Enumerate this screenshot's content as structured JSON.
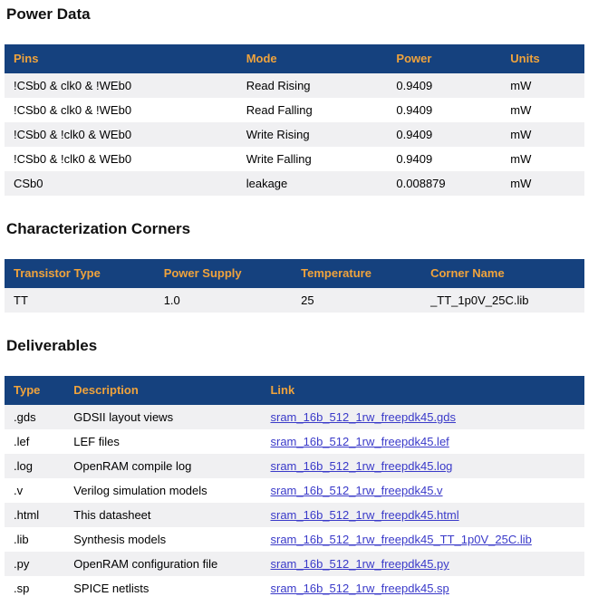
{
  "colors": {
    "table_header_bg": "#15417E",
    "table_header_text": "#F0A33C",
    "row_stripe": "#F0F0F2",
    "link": "#3A3AC9"
  },
  "sections": {
    "power": {
      "title": "Power Data",
      "headers": [
        "Pins",
        "Mode",
        "Power",
        "Units"
      ],
      "rows": [
        [
          "!CSb0 & clk0 & !WEb0",
          "Read Rising",
          "0.9409",
          "mW"
        ],
        [
          "!CSb0 & clk0 & !WEb0",
          "Read Falling",
          "0.9409",
          "mW"
        ],
        [
          "!CSb0 & !clk0 & WEb0",
          "Write Rising",
          "0.9409",
          "mW"
        ],
        [
          "!CSb0 & !clk0 & WEb0",
          "Write Falling",
          "0.9409",
          "mW"
        ],
        [
          "CSb0",
          "leakage",
          "0.008879",
          "mW"
        ]
      ]
    },
    "corners": {
      "title": "Characterization Corners",
      "headers": [
        "Transistor Type",
        "Power Supply",
        "Temperature",
        "Corner Name"
      ],
      "rows": [
        [
          "TT",
          "1.0",
          "25",
          "_TT_1p0V_25C.lib"
        ]
      ]
    },
    "deliverables": {
      "title": "Deliverables",
      "headers": [
        "Type",
        "Description",
        "Link"
      ],
      "rows": [
        [
          ".gds",
          "GDSII layout views",
          "sram_16b_512_1rw_freepdk45.gds"
        ],
        [
          ".lef",
          "LEF files",
          "sram_16b_512_1rw_freepdk45.lef"
        ],
        [
          ".log",
          "OpenRAM compile log",
          "sram_16b_512_1rw_freepdk45.log"
        ],
        [
          ".v",
          "Verilog simulation models",
          "sram_16b_512_1rw_freepdk45.v"
        ],
        [
          ".html",
          "This datasheet",
          "sram_16b_512_1rw_freepdk45.html"
        ],
        [
          ".lib",
          "Synthesis models",
          "sram_16b_512_1rw_freepdk45_TT_1p0V_25C.lib"
        ],
        [
          ".py",
          "OpenRAM configuration file",
          "sram_16b_512_1rw_freepdk45.py"
        ],
        [
          ".sp",
          "SPICE netlists",
          "sram_16b_512_1rw_freepdk45.sp"
        ]
      ]
    }
  }
}
